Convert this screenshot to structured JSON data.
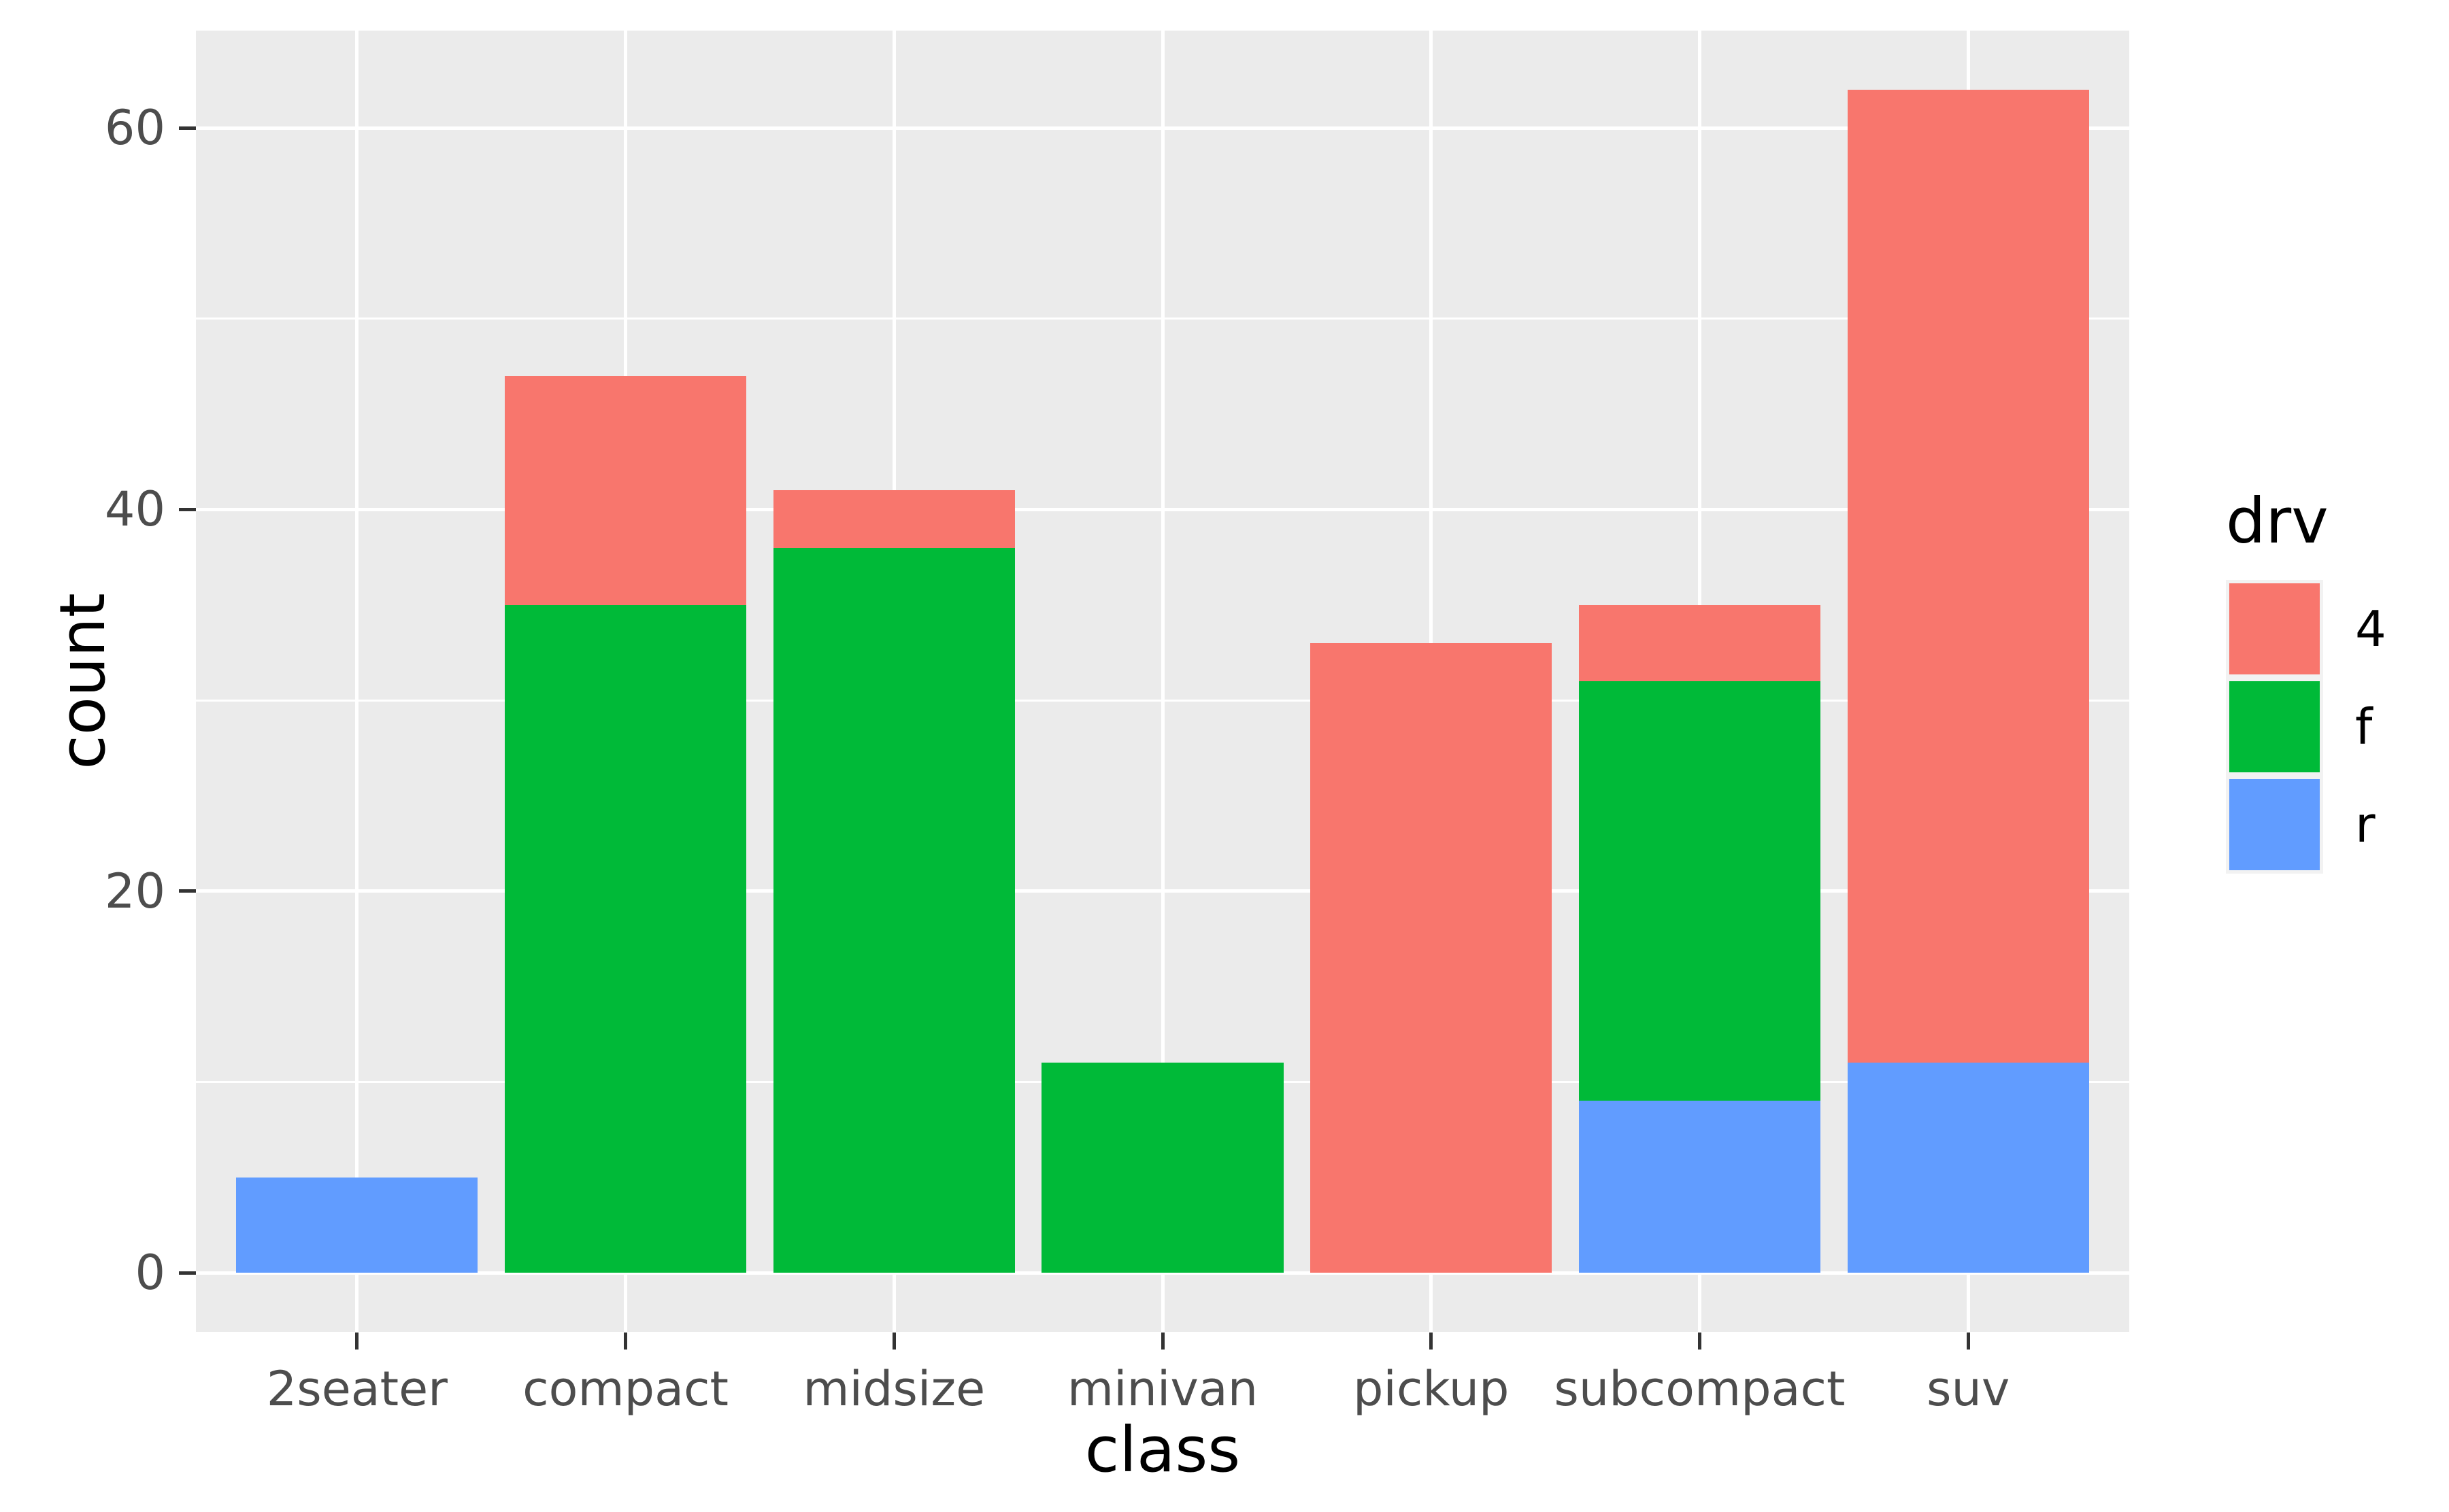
{
  "chart_data": {
    "type": "bar",
    "stacked": true,
    "orientation": "vertical",
    "xlabel": "class",
    "ylabel": "count",
    "categories": [
      "2seater",
      "compact",
      "midsize",
      "minivan",
      "pickup",
      "subcompact",
      "suv"
    ],
    "series": [
      {
        "name": "4",
        "color": "#F8766D",
        "values": [
          0,
          12,
          3,
          0,
          33,
          4,
          51
        ]
      },
      {
        "name": "f",
        "color": "#00BA38",
        "values": [
          0,
          35,
          38,
          11,
          0,
          22,
          0
        ]
      },
      {
        "name": "r",
        "color": "#619CFF",
        "values": [
          5,
          0,
          0,
          0,
          0,
          9,
          11
        ]
      }
    ],
    "stack_totals": [
      5,
      47,
      41,
      11,
      33,
      35,
      62
    ],
    "ylim": [
      0,
      62
    ],
    "y_major_ticks": [
      0,
      20,
      40,
      60
    ],
    "y_minor_ticks": [
      10,
      30,
      50
    ],
    "grid": "on",
    "legend": {
      "title": "drv",
      "position": "right",
      "entries": [
        {
          "label": "4",
          "color": "#F8766D"
        },
        {
          "label": "f",
          "color": "#00BA38"
        },
        {
          "label": "r",
          "color": "#619CFF"
        }
      ]
    },
    "theme": {
      "panel_background": "#EBEBEB",
      "grid_color": "#FFFFFF",
      "tick_mark_color": "#333333",
      "tick_label_color": "#4D4D4D",
      "axis_title_color": "#000000",
      "legend_key_background": "#F2F2F2",
      "page_background": "#FFFFFF"
    }
  }
}
